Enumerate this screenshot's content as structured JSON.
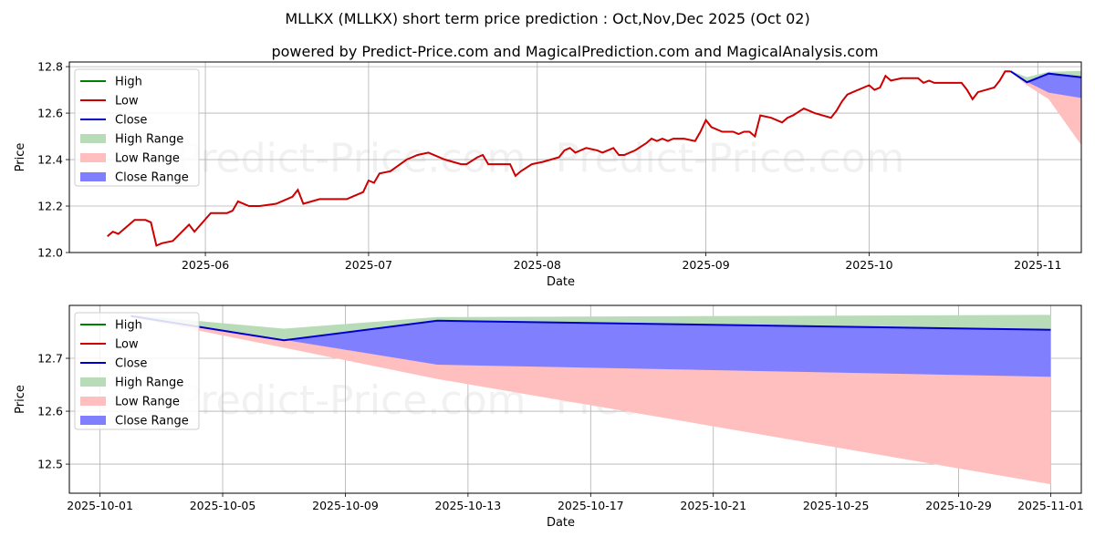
{
  "title_line1": "MLLKX (MLLKX) short term price prediction : Oct,Nov,Dec 2025 (Oct 02)",
  "title_line2": "powered by Predict-Price.com and MagicalPrediction.com and MagicalAnalysis.com",
  "watermark": "Predict-Price.com",
  "colors": {
    "high": "#008000",
    "low": "#cc0000",
    "close": "#0000cc",
    "high_range": "#b7dcb7",
    "low_range": "#ffbfbf",
    "close_range": "#8080ff"
  },
  "chart_data": [
    {
      "type": "line",
      "xlabel": "Date",
      "ylabel": "Price",
      "ylim": [
        12.0,
        12.82
      ],
      "yticks": [
        "12.0",
        "12.2",
        "12.4",
        "12.6",
        "12.8"
      ],
      "xticks": [
        "2025-06",
        "2025-07",
        "2025-08",
        "2025-09",
        "2025-10",
        "2025-11"
      ],
      "xlim": [
        "2025-05-07",
        "2025-11-09"
      ],
      "grid": true,
      "legend": "top-left",
      "legend_entries": [
        "High",
        "Low",
        "Close",
        "High Range",
        "Low Range",
        "Close Range"
      ],
      "history_low": [
        [
          "2025-05-14",
          12.07
        ],
        [
          "2025-05-15",
          12.09
        ],
        [
          "2025-05-16",
          12.08
        ],
        [
          "2025-05-19",
          12.14
        ],
        [
          "2025-05-20",
          12.14
        ],
        [
          "2025-05-21",
          12.14
        ],
        [
          "2025-05-22",
          12.13
        ],
        [
          "2025-05-23",
          12.03
        ],
        [
          "2025-05-24",
          12.04
        ],
        [
          "2025-05-26",
          12.05
        ],
        [
          "2025-05-29",
          12.12
        ],
        [
          "2025-05-30",
          12.09
        ],
        [
          "2025-06-02",
          12.17
        ],
        [
          "2025-06-04",
          12.17
        ],
        [
          "2025-06-05",
          12.17
        ],
        [
          "2025-06-06",
          12.18
        ],
        [
          "2025-06-07",
          12.22
        ],
        [
          "2025-06-09",
          12.2
        ],
        [
          "2025-06-11",
          12.2
        ],
        [
          "2025-06-14",
          12.21
        ],
        [
          "2025-06-16",
          12.23
        ],
        [
          "2025-06-17",
          12.24
        ],
        [
          "2025-06-18",
          12.27
        ],
        [
          "2025-06-19",
          12.21
        ],
        [
          "2025-06-22",
          12.23
        ],
        [
          "2025-06-25",
          12.23
        ],
        [
          "2025-06-27",
          12.23
        ],
        [
          "2025-06-28",
          12.24
        ],
        [
          "2025-06-30",
          12.26
        ],
        [
          "2025-07-01",
          12.31
        ],
        [
          "2025-07-02",
          12.3
        ],
        [
          "2025-07-03",
          12.34
        ],
        [
          "2025-07-05",
          12.35
        ],
        [
          "2025-07-08",
          12.4
        ],
        [
          "2025-07-09",
          12.41
        ],
        [
          "2025-07-10",
          12.42
        ],
        [
          "2025-07-12",
          12.43
        ],
        [
          "2025-07-15",
          12.4
        ],
        [
          "2025-07-18",
          12.38
        ],
        [
          "2025-07-19",
          12.38
        ],
        [
          "2025-07-21",
          12.41
        ],
        [
          "2025-07-22",
          12.42
        ],
        [
          "2025-07-23",
          12.38
        ],
        [
          "2025-07-25",
          12.38
        ],
        [
          "2025-07-27",
          12.38
        ],
        [
          "2025-07-28",
          12.33
        ],
        [
          "2025-07-29",
          12.35
        ],
        [
          "2025-07-31",
          12.38
        ],
        [
          "2025-08-02",
          12.39
        ],
        [
          "2025-08-05",
          12.41
        ],
        [
          "2025-08-06",
          12.44
        ],
        [
          "2025-08-07",
          12.45
        ],
        [
          "2025-08-08",
          12.43
        ],
        [
          "2025-08-10",
          12.45
        ],
        [
          "2025-08-12",
          12.44
        ],
        [
          "2025-08-13",
          12.43
        ],
        [
          "2025-08-15",
          12.45
        ],
        [
          "2025-08-16",
          12.42
        ],
        [
          "2025-08-17",
          12.42
        ],
        [
          "2025-08-19",
          12.44
        ],
        [
          "2025-08-21",
          12.47
        ],
        [
          "2025-08-22",
          12.49
        ],
        [
          "2025-08-23",
          12.48
        ],
        [
          "2025-08-24",
          12.49
        ],
        [
          "2025-08-25",
          12.48
        ],
        [
          "2025-08-26",
          12.49
        ],
        [
          "2025-08-28",
          12.49
        ],
        [
          "2025-08-30",
          12.48
        ],
        [
          "2025-08-31",
          12.52
        ],
        [
          "2025-09-01",
          12.57
        ],
        [
          "2025-09-02",
          12.54
        ],
        [
          "2025-09-04",
          12.52
        ],
        [
          "2025-09-06",
          12.52
        ],
        [
          "2025-09-07",
          12.51
        ],
        [
          "2025-09-08",
          12.52
        ],
        [
          "2025-09-09",
          12.52
        ],
        [
          "2025-09-10",
          12.5
        ],
        [
          "2025-09-11",
          12.59
        ],
        [
          "2025-09-13",
          12.58
        ],
        [
          "2025-09-15",
          12.56
        ],
        [
          "2025-09-16",
          12.58
        ],
        [
          "2025-09-17",
          12.59
        ],
        [
          "2025-09-19",
          12.62
        ],
        [
          "2025-09-21",
          12.6
        ],
        [
          "2025-09-24",
          12.58
        ],
        [
          "2025-09-25",
          12.61
        ],
        [
          "2025-09-26",
          12.65
        ],
        [
          "2025-09-27",
          12.68
        ],
        [
          "2025-09-28",
          12.69
        ],
        [
          "2025-09-30",
          12.71
        ],
        [
          "2025-10-01",
          12.72
        ],
        [
          "2025-10-02",
          12.7
        ],
        [
          "2025-10-03",
          12.71
        ],
        [
          "2025-10-04",
          12.76
        ],
        [
          "2025-10-05",
          12.74
        ],
        [
          "2025-10-07",
          12.75
        ],
        [
          "2025-10-09",
          12.75
        ],
        [
          "2025-10-10",
          12.75
        ],
        [
          "2025-10-11",
          12.73
        ],
        [
          "2025-10-12",
          12.74
        ],
        [
          "2025-10-13",
          12.73
        ],
        [
          "2025-10-18",
          12.73
        ],
        [
          "2025-10-19",
          12.7
        ],
        [
          "2025-10-20",
          12.66
        ],
        [
          "2025-10-21",
          12.69
        ],
        [
          "2025-10-24",
          12.71
        ],
        [
          "2025-10-25",
          12.74
        ],
        [
          "2025-10-26",
          12.78
        ],
        [
          "2025-10-27",
          12.78
        ]
      ],
      "forecast": {
        "x": [
          "2025-10-27",
          "2025-10-30",
          "2025-11-03",
          "2025-11-09"
        ],
        "close": [
          12.78,
          12.733,
          12.77,
          12.754
        ],
        "high_upper": [
          12.782,
          12.755,
          12.778,
          12.782
        ],
        "low_lower": [
          12.778,
          12.72,
          12.66,
          12.462
        ],
        "close_lower": [
          12.78,
          12.735,
          12.688,
          12.665
        ]
      }
    },
    {
      "type": "line",
      "xlabel": "Date",
      "ylabel": "Price",
      "ylim": [
        12.445,
        12.8
      ],
      "yticks": [
        "12.5",
        "12.6",
        "12.7"
      ],
      "xticks": [
        "2025-10-01",
        "2025-10-05",
        "2025-10-09",
        "2025-10-13",
        "2025-10-17",
        "2025-10-21",
        "2025-10-25",
        "2025-10-29",
        "2025-11-01"
      ],
      "xlim": [
        "2025-09-30",
        "2025-11-02"
      ],
      "grid": true,
      "legend": "top-left",
      "legend_entries": [
        "High",
        "Low",
        "Close",
        "High Range",
        "Low Range",
        "Close Range"
      ],
      "forecast": {
        "x": [
          "2025-10-02",
          "2025-10-07",
          "2025-10-12",
          "2025-11-01"
        ],
        "close": [
          12.78,
          12.734,
          12.771,
          12.754
        ],
        "high_upper": [
          12.782,
          12.756,
          12.778,
          12.782
        ],
        "low_lower": [
          12.778,
          12.72,
          12.661,
          12.462
        ],
        "close_lower": [
          12.78,
          12.735,
          12.688,
          12.665
        ]
      }
    }
  ]
}
